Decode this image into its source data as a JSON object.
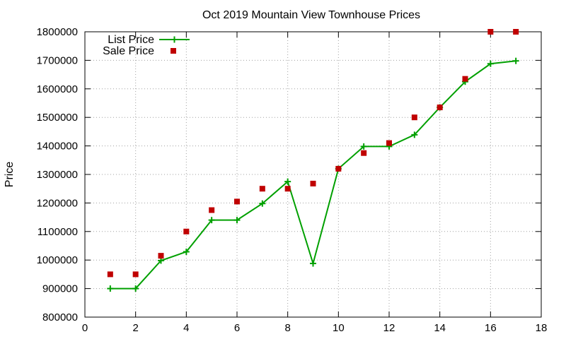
{
  "chart_data": {
    "type": "line",
    "title": "Oct 2019 Mountain View Townhouse Prices",
    "xlabel": "",
    "ylabel": "Price",
    "xlim": [
      0,
      18
    ],
    "ylim": [
      800000,
      1800000
    ],
    "xticks": [
      "0",
      "2",
      "4",
      "6",
      "8",
      "10",
      "12",
      "14",
      "16",
      "18"
    ],
    "yticks": [
      "800000",
      "900000",
      "1000000",
      "1100000",
      "1200000",
      "1300000",
      "1400000",
      "1500000",
      "1600000",
      "1700000",
      "1800000"
    ],
    "grid": true,
    "legend_position": "top-left",
    "series": [
      {
        "name": "List Price",
        "style": "line-with-plus-markers",
        "color": "#00a000",
        "x": [
          1,
          2,
          3,
          4,
          5,
          6,
          7,
          8,
          9,
          10,
          11,
          12,
          13,
          14,
          15,
          16,
          17
        ],
        "values": [
          900000,
          900000,
          998000,
          1029000,
          1140000,
          1140000,
          1198000,
          1275000,
          988000,
          1320000,
          1398000,
          1398000,
          1439000,
          1535000,
          1625000,
          1688000,
          1698000
        ]
      },
      {
        "name": "Sale Price",
        "style": "square-markers",
        "color": "#c00000",
        "x": [
          1,
          2,
          3,
          4,
          5,
          6,
          7,
          8,
          9,
          10,
          11,
          12,
          13,
          14,
          15,
          16,
          17
        ],
        "values": [
          950000,
          950000,
          1015000,
          1100000,
          1175000,
          1205000,
          1250000,
          1250000,
          1268000,
          1320000,
          1375000,
          1410000,
          1500000,
          1535000,
          1635000,
          1800000,
          1800000
        ]
      }
    ]
  }
}
